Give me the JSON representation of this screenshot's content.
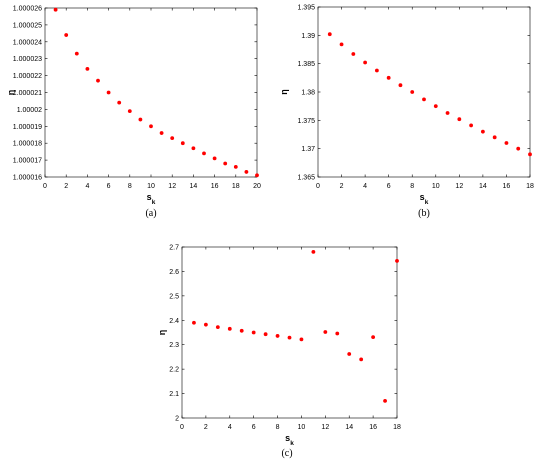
{
  "chart_data": [
    {
      "type": "scatter",
      "caption": "(a)",
      "xlabel": "s",
      "xlabel_sub": "k",
      "ylabel": "η",
      "xlim": [
        0,
        20
      ],
      "ylim": [
        1.000016,
        1.000026
      ],
      "xticks": [
        0,
        2,
        4,
        6,
        8,
        10,
        12,
        14,
        16,
        18,
        20
      ],
      "yticks": [
        1.000016,
        1.000017,
        1.000018,
        1.000019,
        1.00002,
        1.000021,
        1.000022,
        1.000023,
        1.000024,
        1.000025,
        1.000026
      ],
      "ytick_labels": [
        "1.000016",
        "1.000017",
        "1.000018",
        "1.000019",
        "1.00002",
        "1.000021",
        "1.000022",
        "1.000023",
        "1.000024",
        "1.000025",
        "1.000026"
      ],
      "marker_color": "#ff0000",
      "x": [
        1,
        2,
        3,
        4,
        5,
        6,
        7,
        8,
        9,
        10,
        11,
        12,
        13,
        14,
        15,
        16,
        17,
        18,
        19,
        20
      ],
      "y": [
        1.0000259,
        1.0000244,
        1.0000233,
        1.0000224,
        1.0000217,
        1.000021,
        1.0000204,
        1.0000199,
        1.0000194,
        1.000019,
        1.0000186,
        1.0000183,
        1.000018,
        1.0000177,
        1.0000174,
        1.0000171,
        1.0000168,
        1.0000166,
        1.0000163,
        1.0000161
      ]
    },
    {
      "type": "scatter",
      "caption": "(b)",
      "xlabel": "s",
      "xlabel_sub": "k",
      "ylabel": "η",
      "xlim": [
        0,
        18
      ],
      "ylim": [
        1.365,
        1.395
      ],
      "xticks": [
        0,
        2,
        4,
        6,
        8,
        10,
        12,
        14,
        16,
        18
      ],
      "yticks": [
        1.365,
        1.37,
        1.375,
        1.38,
        1.385,
        1.39,
        1.395
      ],
      "ytick_labels": [
        "1.365",
        "1.37",
        "1.375",
        "1.38",
        "1.385",
        "1.39",
        "1.395"
      ],
      "marker_color": "#ff0000",
      "x": [
        1,
        2,
        3,
        4,
        5,
        6,
        7,
        8,
        9,
        10,
        11,
        12,
        13,
        14,
        15,
        16,
        17,
        18
      ],
      "y": [
        1.3902,
        1.3884,
        1.3867,
        1.3852,
        1.3838,
        1.3825,
        1.3812,
        1.38,
        1.3787,
        1.3775,
        1.3763,
        1.3752,
        1.3741,
        1.373,
        1.372,
        1.371,
        1.37,
        1.369
      ]
    },
    {
      "type": "scatter",
      "caption": "(c)",
      "xlabel": "s",
      "xlabel_sub": "k",
      "ylabel": "η",
      "xlim": [
        0,
        18
      ],
      "ylim": [
        2,
        2.7
      ],
      "xticks": [
        0,
        2,
        4,
        6,
        8,
        10,
        12,
        14,
        16,
        18
      ],
      "yticks": [
        2,
        2.1,
        2.2,
        2.3,
        2.4,
        2.5,
        2.6,
        2.7
      ],
      "ytick_labels": [
        "2",
        "2.1",
        "2.2",
        "2.3",
        "2.4",
        "2.5",
        "2.6",
        "2.7"
      ],
      "marker_color": "#ff0000",
      "x": [
        1,
        2,
        3,
        4,
        5,
        6,
        7,
        8,
        9,
        10,
        11,
        12,
        13,
        14,
        15,
        16,
        17,
        18
      ],
      "y": [
        2.39,
        2.382,
        2.372,
        2.365,
        2.357,
        2.35,
        2.343,
        2.336,
        2.329,
        2.322,
        2.68,
        2.352,
        2.346,
        2.262,
        2.24,
        2.331,
        2.07,
        2.643
      ]
    }
  ]
}
